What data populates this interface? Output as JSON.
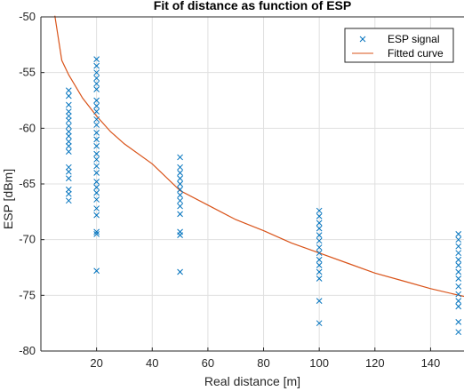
{
  "chart_data": {
    "type": "scatter",
    "title": "Fit of distance as function of ESP",
    "xlabel": "Real distance [m]",
    "ylabel": "ESP [dBm]",
    "xlim": [
      0,
      152
    ],
    "ylim": [
      -80,
      -50
    ],
    "xticks": [
      20,
      40,
      60,
      80,
      100,
      120,
      140
    ],
    "yticks": [
      -80,
      -75,
      -70,
      -65,
      -60,
      -55,
      -50
    ],
    "grid": true,
    "legend_position": "top-right",
    "colors": {
      "scatter": "#0072BD",
      "curve": "#D95319",
      "grid": "#e0e0e0",
      "axis": "#262626"
    },
    "series": [
      {
        "name": "ESP signal",
        "type": "scatter",
        "marker": "x",
        "points": [
          [
            10,
            -56.6
          ],
          [
            10,
            -57.1
          ],
          [
            10,
            -57.9
          ],
          [
            10,
            -58.5
          ],
          [
            10,
            -58.9
          ],
          [
            10,
            -59.3
          ],
          [
            10,
            -59.8
          ],
          [
            10,
            -60.3
          ],
          [
            10,
            -60.7
          ],
          [
            10,
            -61.2
          ],
          [
            10,
            -61.6
          ],
          [
            10,
            -62.1
          ],
          [
            10,
            -63.5
          ],
          [
            10,
            -63.9
          ],
          [
            10,
            -64.5
          ],
          [
            10,
            -65.5
          ],
          [
            10,
            -65.9
          ],
          [
            10,
            -66.5
          ],
          [
            20,
            -53.8
          ],
          [
            20,
            -54.4
          ],
          [
            20,
            -55.0
          ],
          [
            20,
            -55.5
          ],
          [
            20,
            -56.0
          ],
          [
            20,
            -56.5
          ],
          [
            20,
            -57.5
          ],
          [
            20,
            -58.0
          ],
          [
            20,
            -58.5
          ],
          [
            20,
            -59.2
          ],
          [
            20,
            -59.7
          ],
          [
            20,
            -60.4
          ],
          [
            20,
            -61.0
          ],
          [
            20,
            -61.6
          ],
          [
            20,
            -62.3
          ],
          [
            20,
            -62.8
          ],
          [
            20,
            -63.4
          ],
          [
            20,
            -64.0
          ],
          [
            20,
            -64.8
          ],
          [
            20,
            -65.3
          ],
          [
            20,
            -65.8
          ],
          [
            20,
            -66.4
          ],
          [
            20,
            -67.2
          ],
          [
            20,
            -67.8
          ],
          [
            20,
            -69.3
          ],
          [
            20,
            -69.5
          ],
          [
            20,
            -72.8
          ],
          [
            50,
            -62.6
          ],
          [
            50,
            -63.5
          ],
          [
            50,
            -64.0
          ],
          [
            50,
            -64.5
          ],
          [
            50,
            -65.0
          ],
          [
            50,
            -65.5
          ],
          [
            50,
            -66.0
          ],
          [
            50,
            -66.5
          ],
          [
            50,
            -67.0
          ],
          [
            50,
            -67.7
          ],
          [
            50,
            -69.3
          ],
          [
            50,
            -69.6
          ],
          [
            50,
            -72.9
          ],
          [
            100,
            -67.4
          ],
          [
            100,
            -67.9
          ],
          [
            100,
            -68.5
          ],
          [
            100,
            -69.0
          ],
          [
            100,
            -69.6
          ],
          [
            100,
            -70.1
          ],
          [
            100,
            -70.7
          ],
          [
            100,
            -71.2
          ],
          [
            100,
            -71.8
          ],
          [
            100,
            -72.3
          ],
          [
            100,
            -72.9
          ],
          [
            100,
            -73.5
          ],
          [
            100,
            -75.5
          ],
          [
            100,
            -77.5
          ],
          [
            150,
            -69.5
          ],
          [
            150,
            -70.0
          ],
          [
            150,
            -70.6
          ],
          [
            150,
            -71.2
          ],
          [
            150,
            -71.8
          ],
          [
            150,
            -72.3
          ],
          [
            150,
            -72.9
          ],
          [
            150,
            -73.5
          ],
          [
            150,
            -74.2
          ],
          [
            150,
            -74.9
          ],
          [
            150,
            -75.5
          ],
          [
            150,
            -76.0
          ],
          [
            150,
            -77.4
          ],
          [
            150,
            -78.3
          ]
        ]
      },
      {
        "name": "Fitted curve",
        "type": "line",
        "x": [
          5,
          7.5,
          10,
          15,
          20,
          25,
          30,
          40,
          50,
          60,
          70,
          80,
          90,
          100,
          110,
          120,
          130,
          140,
          152
        ],
        "y": [
          -49.9,
          -53.9,
          -55.2,
          -57.3,
          -58.9,
          -60.3,
          -61.4,
          -63.2,
          -65.6,
          -66.9,
          -68.2,
          -69.2,
          -70.3,
          -71.2,
          -72.1,
          -73.0,
          -73.7,
          -74.4,
          -75.1
        ]
      }
    ]
  }
}
